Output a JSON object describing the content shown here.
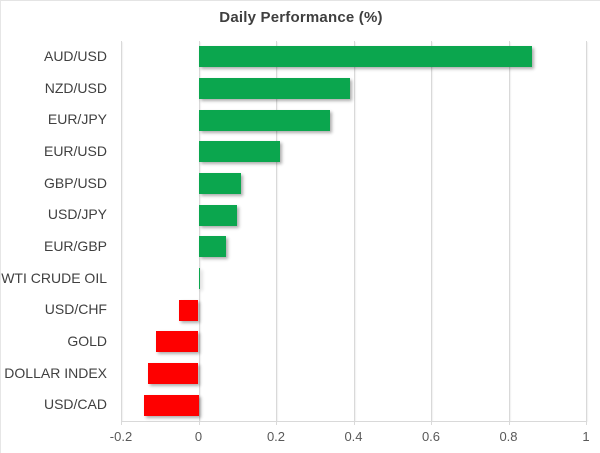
{
  "chart_data": {
    "type": "bar",
    "orientation": "horizontal",
    "title": "Daily Performance (%)",
    "categories": [
      "AUD/USD",
      "NZD/USD",
      "EUR/JPY",
      "EUR/USD",
      "GBP/USD",
      "USD/JPY",
      "EUR/GBP",
      "WTI CRUDE OIL",
      "USD/CHF",
      "GOLD",
      "DOLLAR INDEX",
      "USD/CAD"
    ],
    "values": [
      0.86,
      0.39,
      0.34,
      0.21,
      0.11,
      0.1,
      0.07,
      0.005,
      -0.05,
      -0.11,
      -0.13,
      -0.14
    ],
    "xlabel": "",
    "ylabel": "",
    "xlim": [
      -0.2,
      1.0
    ],
    "x_ticks": [
      -0.2,
      0,
      0.2,
      0.4,
      0.6,
      0.8,
      1
    ],
    "x_tick_labels": [
      "-0.2",
      "0",
      "0.2",
      "0.4",
      "0.6",
      "0.8",
      "1"
    ],
    "grid": true,
    "legend_position": "none",
    "colors": {
      "positive_bar": "#0BA64E",
      "negative_bar": "#FE0000",
      "gridline": "#D9D9D9",
      "axis_line": "#D9D9D9",
      "title_text": "#3F3F3F",
      "category_text": "#404040",
      "tick_text": "#595959",
      "background": "#FFFFFF"
    }
  }
}
